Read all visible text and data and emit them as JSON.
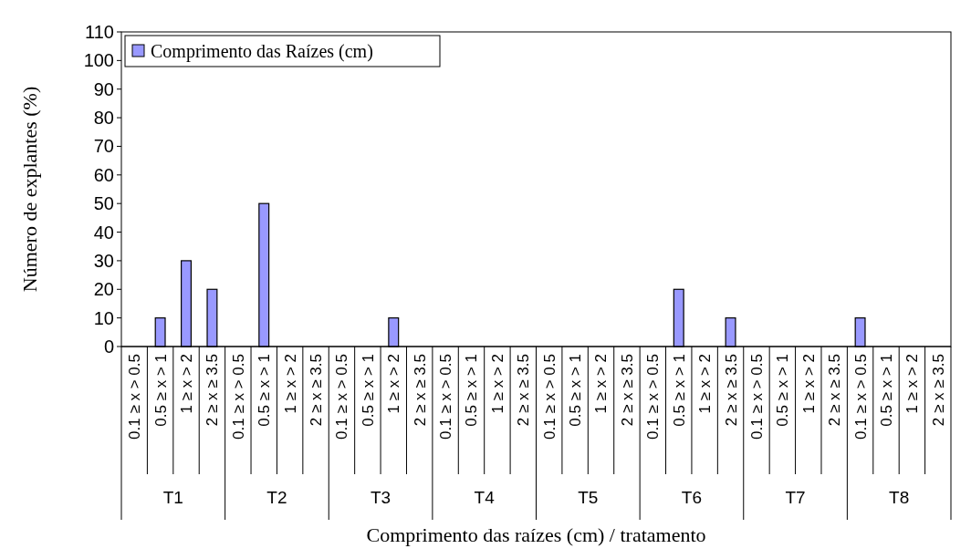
{
  "chart_data": {
    "type": "bar",
    "xlabel": "Comprimento das raízes (cm) / tratamento",
    "ylabel": "Número de explantes (%)",
    "categories": [
      "0.1 ≥ x > 0.5",
      "0.5 ≥ x > 1",
      "1 ≥ x > 2",
      "2 ≥ x ≥ 3.5",
      "0.1 ≥ x > 0.5",
      "0.5 ≥ x > 1",
      "1 ≥ x > 2",
      "2 ≥ x ≥ 3.5",
      "0.1 ≥ x > 0.5",
      "0.5 ≥ x > 1",
      "1 ≥ x > 2",
      "2 ≥ x ≥ 3.5",
      "0.1 ≥ x > 0.5",
      "0.5 ≥ x > 1",
      "1 ≥ x > 2",
      "2 ≥ x ≥ 3.5",
      "0.1 ≥ x > 0.5",
      "0.5 ≥ x > 1",
      "1 ≥ x > 2",
      "2 ≥ x ≥ 3.5",
      "0.1 ≥ x > 0.5",
      "0.5 ≥ x > 1",
      "1 ≥ x > 2",
      "2 ≥ x ≥ 3.5",
      "0.1 ≥ x > 0.5",
      "0.5 ≥ x > 1",
      "1 ≥ x > 2",
      "2 ≥ x ≥ 3.5",
      "0.1 ≥ x > 0.5",
      "0.5 ≥ x > 1",
      "1 ≥ x > 2",
      "2 ≥ x ≥ 3.5"
    ],
    "series": [
      {
        "name": "Comprimento das Raízes (cm)",
        "color": "#9999ff",
        "values": [
          0,
          10,
          30,
          20,
          0,
          50,
          0,
          0,
          0,
          0,
          10,
          0,
          0,
          0,
          0,
          0,
          0,
          0,
          0,
          0,
          0,
          20,
          0,
          10,
          0,
          0,
          0,
          0,
          10,
          0,
          0,
          0
        ]
      }
    ],
    "annotations": [
      "T1",
      "T2",
      "T3",
      "T4",
      "T5",
      "T6",
      "T7",
      "T8"
    ],
    "ylim": [
      0,
      110
    ],
    "yticks": [
      0,
      10,
      20,
      30,
      40,
      50,
      60,
      70,
      80,
      90,
      100,
      110
    ],
    "grid": false,
    "legend": "top left"
  }
}
